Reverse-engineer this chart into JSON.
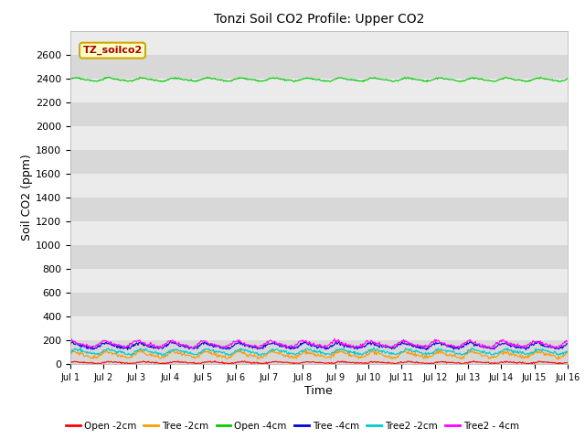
{
  "title": "Tonzi Soil CO2 Profile: Upper CO2",
  "xlabel": "Time",
  "ylabel": "Soil CO2 (ppm)",
  "ylim": [
    0,
    2800
  ],
  "yticks": [
    0,
    200,
    400,
    600,
    800,
    1000,
    1200,
    1400,
    1600,
    1800,
    2000,
    2200,
    2400,
    2600
  ],
  "xlim": [
    0,
    15
  ],
  "xtick_labels": [
    "Jul 1",
    "Jul 2",
    "Jul 3",
    "Jul 4",
    "Jul 5",
    "Jul 6",
    "Jul 7",
    "Jul 8",
    "Jul 9",
    "Jul 10",
    "Jul 11",
    "Jul 12",
    "Jul 13",
    "Jul 14",
    "Jul 15",
    "Jul 16"
  ],
  "annotation_text": "TZ_soilco2",
  "annotation_color": "#aa0000",
  "annotation_bg": "#ffffcc",
  "annotation_border": "#ccaa00",
  "plot_bg_light": "#ebebeb",
  "plot_bg_dark": "#d8d8d8",
  "figure_bg": "#ffffff",
  "grid_color": "#ffffff",
  "series": [
    {
      "label": "Open -2cm",
      "color": "#ff0000",
      "base": 15,
      "amplitude": 6,
      "period": 1.0,
      "phase": 0.0,
      "noise": 3
    },
    {
      "label": "Tree -2cm",
      "color": "#ff9900",
      "base": 80,
      "amplitude": 22,
      "period": 1.0,
      "phase": 0.5,
      "noise": 8
    },
    {
      "label": "Open -4cm",
      "color": "#00cc00",
      "base": 2390,
      "amplitude": 12,
      "period": 1.0,
      "phase": 0.3,
      "noise": 3
    },
    {
      "label": "Tree -4cm",
      "color": "#0000dd",
      "base": 155,
      "amplitude": 20,
      "period": 1.0,
      "phase": 0.8,
      "noise": 7
    },
    {
      "label": "Tree2 -2cm",
      "color": "#00cccc",
      "base": 105,
      "amplitude": 18,
      "period": 1.0,
      "phase": 0.2,
      "noise": 6
    },
    {
      "label": "Tree2 - 4cm",
      "color": "#ff00ff",
      "base": 170,
      "amplitude": 22,
      "period": 1.0,
      "phase": 1.1,
      "noise": 7
    }
  ]
}
